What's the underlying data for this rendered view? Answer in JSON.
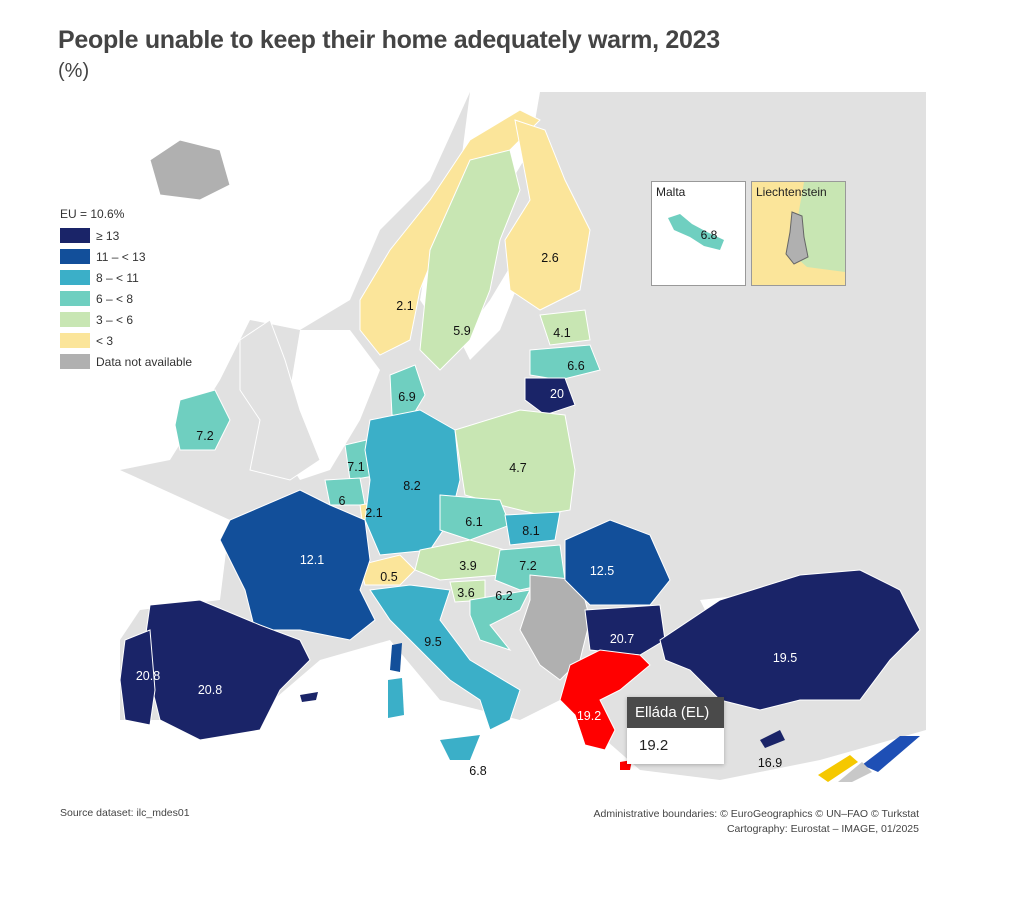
{
  "title": "People unable to keep their home adequately warm, 2023",
  "subtitle": "(%)",
  "legend": {
    "header": "EU = 10.6%",
    "items": [
      {
        "label": "≥ 13",
        "color": "#1a2468"
      },
      {
        "label": "11 – < 13",
        "color": "#124f9a"
      },
      {
        "label": "8 – < 11",
        "color": "#3bafc8"
      },
      {
        "label": "6 – < 8",
        "color": "#6fcfc0"
      },
      {
        "label": "3 – < 6",
        "color": "#c8e6b3"
      },
      {
        "label": "< 3",
        "color": "#fbe59a"
      },
      {
        "label": "Data not available",
        "color": "#b0b0b0"
      }
    ]
  },
  "colors": {
    "sea": "#ffffff",
    "non_eu_land": "#e1e1e1",
    "border": "#ffffff",
    "highlight": "#ff0000"
  },
  "countries": {
    "spain": "20.8",
    "portugal": "20.8",
    "france": "12.1",
    "ireland": "7.2",
    "belgium": "6",
    "netherlands": "7.1",
    "luxembourg": "2.1",
    "germany": "8.2",
    "denmark": "6.9",
    "switzerland": "0.5",
    "italy": "9.5",
    "austria": "3.9",
    "slovenia": "3.6",
    "croatia": "6.2",
    "czechia": "6.1",
    "slovakia": "8.1",
    "hungary": "7.2",
    "poland": "4.7",
    "lithuania": "20",
    "latvia": "6.6",
    "estonia": "4.1",
    "finland": "2.6",
    "sweden": "5.9",
    "norway": "2.1",
    "romania": "12.5",
    "bulgaria": "20.7",
    "greece": "19.2",
    "turkey": "19.5",
    "cyprus": "16.9",
    "malta_sicily_label": "6.8"
  },
  "insets": {
    "malta": {
      "label": "Malta",
      "value": "6.8"
    },
    "liechtenstein": {
      "label": "Liechtenstein"
    }
  },
  "tooltip": {
    "name": "Elláda (EL)",
    "value": "19.2"
  },
  "footer": {
    "source": "Source dataset: ilc_mdes01",
    "credits_line1": "Administrative boundaries: © EuroGeographics © UN–FAO © Turkstat",
    "credits_line2": "Cartography: Eurostat – IMAGE, 01/2025"
  }
}
